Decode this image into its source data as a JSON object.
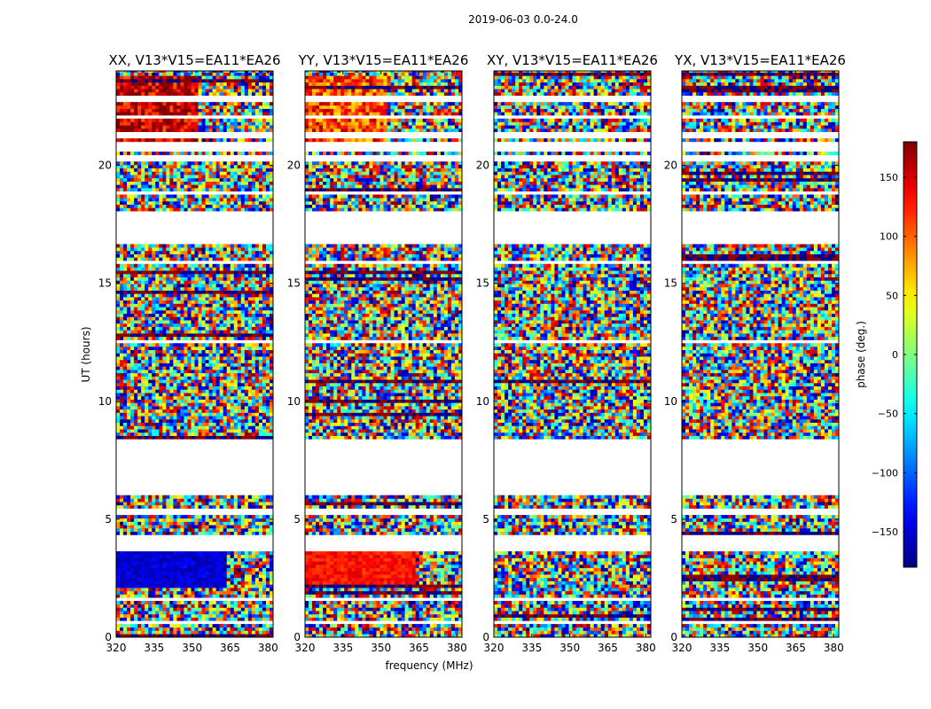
{
  "chart_data": {
    "type": "heatmap",
    "suptitle": "2019-06-03 0.0-24.0",
    "xlabel": "frequency (MHz)",
    "ylabel": "UT (hours)",
    "xlim": [
      320,
      382
    ],
    "ylim": [
      0,
      24
    ],
    "xticks": [
      320,
      335,
      350,
      365,
      380
    ],
    "yticks": [
      0,
      5,
      10,
      15,
      20
    ],
    "xtick_labels": [
      "320",
      "335",
      "350",
      "365",
      "380"
    ],
    "ytick_labels": [
      "0",
      "5",
      "10",
      "15",
      "20"
    ],
    "colorbar": {
      "label": "phase (deg.)",
      "range": [
        -180,
        180
      ],
      "ticks": [
        150,
        100,
        50,
        0,
        -50,
        -100,
        -150
      ],
      "tick_labels": [
        "150",
        "100",
        "50",
        "0",
        "−50",
        "−100",
        "−150"
      ],
      "colormap": "jet",
      "position": "right"
    },
    "panels": [
      {
        "title": "XX, V13*V15=EA11*EA26",
        "polarization": "XX",
        "strong_phase": true
      },
      {
        "title": "YY, V13*V15=EA11*EA26",
        "polarization": "YY",
        "strong_phase": true
      },
      {
        "title": "XY, V13*V15=EA11*EA26",
        "polarization": "XY",
        "strong_phase": false
      },
      {
        "title": "YX, V13*V15=EA11*EA26",
        "polarization": "YX",
        "strong_phase": false
      }
    ],
    "data_gaps_hours": [
      [
        0.6,
        0.75
      ],
      [
        1.35,
        1.45
      ],
      [
        1.55,
        1.7
      ],
      [
        3.7,
        4.05
      ],
      [
        4.1,
        4.3
      ],
      [
        5.2,
        5.45
      ],
      [
        6.0,
        8.4
      ],
      [
        12.5,
        12.6
      ],
      [
        15.85,
        16.0
      ],
      [
        16.6,
        18.05
      ],
      [
        18.75,
        18.85
      ],
      [
        20.2,
        20.45
      ],
      [
        20.55,
        21.0
      ],
      [
        21.2,
        21.4
      ],
      [
        22.0,
        22.15
      ],
      [
        22.7,
        23.0
      ],
      [
        23.5,
        23.55
      ]
    ],
    "persistent_phase_bands": {
      "hours": [
        2.0,
        3.7
      ],
      "freq_MHz": [
        320,
        363
      ],
      "XX_deg": -150,
      "YY_deg": 130
    }
  }
}
